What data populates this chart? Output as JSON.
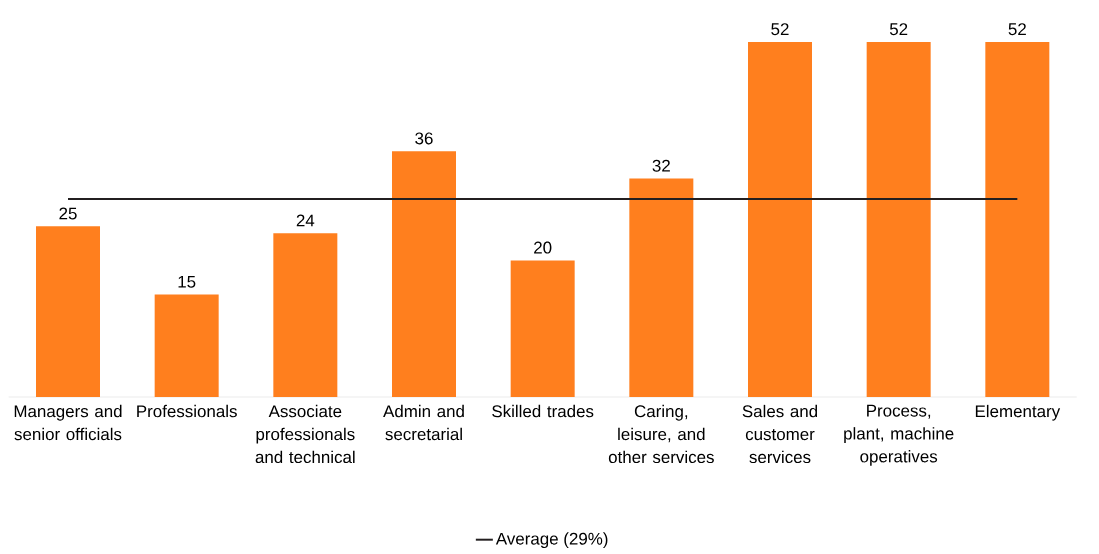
{
  "chart_data": {
    "type": "bar",
    "categories": [
      "Managers and senior officials",
      "Professionals",
      "Associate professionals and technical",
      "Admin and secretarial",
      "Skilled trades",
      "Caring, leisure, and other services",
      "Sales and customer services",
      "Process, plant, machine operatives",
      "Elementary"
    ],
    "values": [
      25,
      15,
      24,
      36,
      20,
      32,
      52,
      52,
      52
    ],
    "color": "#ff7f1e",
    "data_labels": true,
    "ref_lines": [
      {
        "axis": "y",
        "value": 29,
        "label": "Average (29%)",
        "color": "#231f20"
      }
    ],
    "legend": "bottom"
  }
}
